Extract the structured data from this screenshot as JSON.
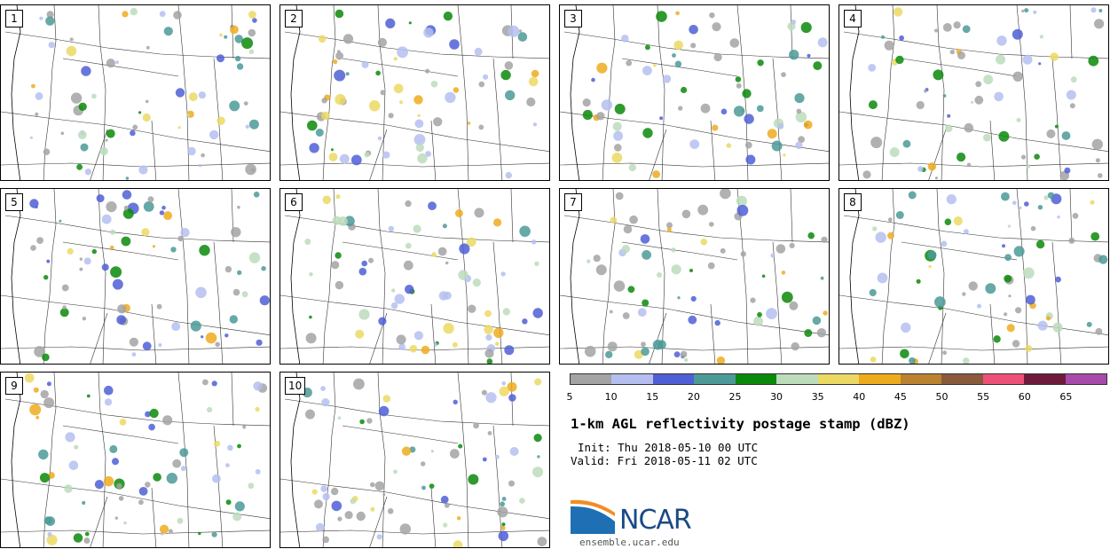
{
  "panels": [
    {
      "number": "1"
    },
    {
      "number": "2"
    },
    {
      "number": "3"
    },
    {
      "number": "4"
    },
    {
      "number": "5"
    },
    {
      "number": "6"
    },
    {
      "number": "7"
    },
    {
      "number": "8"
    },
    {
      "number": "9"
    },
    {
      "number": "10"
    }
  ],
  "colorbar": {
    "colors": [
      "#a3a3a3",
      "#b4bff0",
      "#4f5fd6",
      "#4b9a98",
      "#0a8a0a",
      "#bcdcbc",
      "#ecd964",
      "#eeab1e",
      "#bb8230",
      "#8a5a3c",
      "#ee5078",
      "#6e1a3c",
      "#a84aaa"
    ],
    "tick_labels": [
      "5",
      "10",
      "15",
      "20",
      "25",
      "30",
      "35",
      "40",
      "45",
      "50",
      "55",
      "60",
      "65"
    ]
  },
  "title": "1-km AGL reflectivity postage stamp (dBZ)",
  "init_line": "Init: Thu 2018-05-10 00 UTC",
  "valid_line": "Valid: Fri 2018-05-11 02 UTC",
  "logo": {
    "wordmark": "NCAR",
    "url": "ensemble.ucar.edu",
    "colors": {
      "wordmark": "#1a4a86",
      "swoosh_blue": "#1f6fb4",
      "swoosh_orange": "#f28c28"
    }
  }
}
